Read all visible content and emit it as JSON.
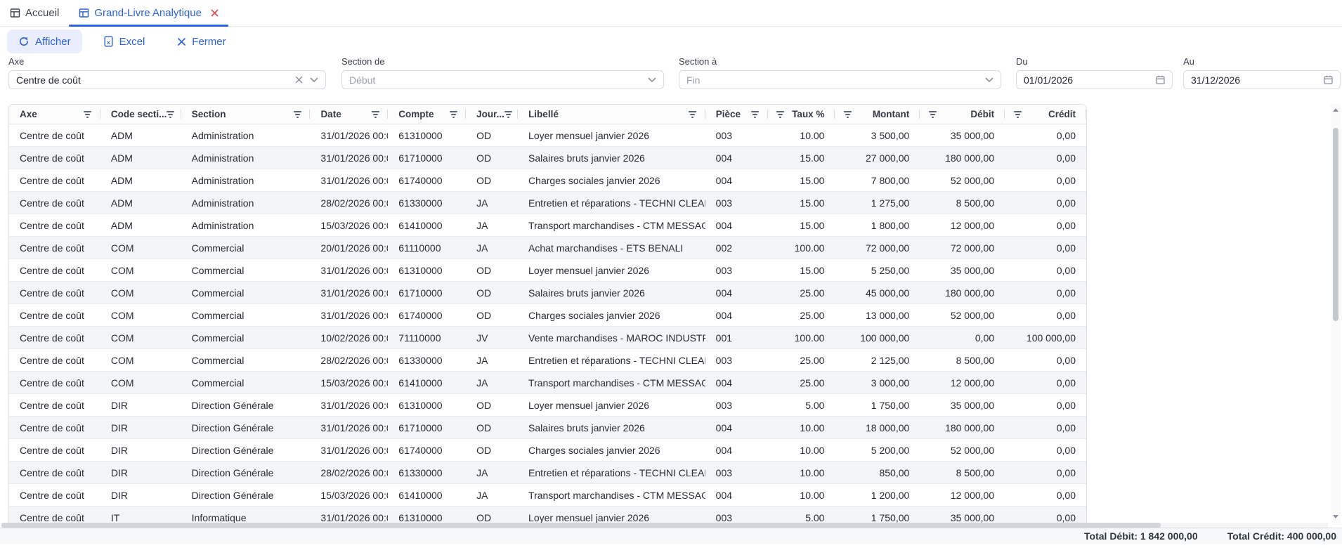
{
  "tabs": [
    {
      "label": "Accueil",
      "active": false
    },
    {
      "label": "Grand-Livre Analytique",
      "active": true,
      "closable": true
    }
  ],
  "toolbar": {
    "afficher_label": "Afficher",
    "excel_label": "Excel",
    "fermer_label": "Fermer"
  },
  "filters": {
    "axe": {
      "label": "Axe",
      "value": "Centre de coût",
      "clearable": true
    },
    "section_de": {
      "label": "Section de",
      "value": "Début"
    },
    "section_a": {
      "label": "Section à",
      "value": "Fin"
    },
    "du": {
      "label": "Du",
      "value": "01/01/2026"
    },
    "au": {
      "label": "Au",
      "value": "31/12/2026"
    }
  },
  "table": {
    "columns": [
      "Axe",
      "Code secti...",
      "Section",
      "Date",
      "Compte",
      "Jour...",
      "Libellé",
      "Pièce",
      "Taux %",
      "Montant",
      "Débit",
      "Crédit"
    ],
    "rows": [
      [
        "Centre de coût",
        "ADM",
        "Administration",
        "31/01/2026 00:0",
        "61310000",
        "OD",
        "Loyer mensuel janvier 2026",
        "003",
        "10.00",
        "3 500,00",
        "35 000,00",
        "0,00"
      ],
      [
        "Centre de coût",
        "ADM",
        "Administration",
        "31/01/2026 00:0",
        "61710000",
        "OD",
        "Salaires bruts janvier 2026",
        "004",
        "15.00",
        "27 000,00",
        "180 000,00",
        "0,00"
      ],
      [
        "Centre de coût",
        "ADM",
        "Administration",
        "31/01/2026 00:0",
        "61740000",
        "OD",
        "Charges sociales janvier 2026",
        "004",
        "15.00",
        "7 800,00",
        "52 000,00",
        "0,00"
      ],
      [
        "Centre de coût",
        "ADM",
        "Administration",
        "28/02/2026 00:0",
        "61330000",
        "JA",
        "Entretien et réparations - TECHNI CLEAN",
        "003",
        "15.00",
        "1 275,00",
        "8 500,00",
        "0,00"
      ],
      [
        "Centre de coût",
        "ADM",
        "Administration",
        "15/03/2026 00:0",
        "61410000",
        "JA",
        "Transport marchandises - CTM MESSAGE",
        "004",
        "15.00",
        "1 800,00",
        "12 000,00",
        "0,00"
      ],
      [
        "Centre de coût",
        "COM",
        "Commercial",
        "20/01/2026 00:0",
        "61110000",
        "JA",
        "Achat marchandises - ETS BENALI",
        "002",
        "100.00",
        "72 000,00",
        "72 000,00",
        "0,00"
      ],
      [
        "Centre de coût",
        "COM",
        "Commercial",
        "31/01/2026 00:0",
        "61310000",
        "OD",
        "Loyer mensuel janvier 2026",
        "003",
        "15.00",
        "5 250,00",
        "35 000,00",
        "0,00"
      ],
      [
        "Centre de coût",
        "COM",
        "Commercial",
        "31/01/2026 00:0",
        "61710000",
        "OD",
        "Salaires bruts janvier 2026",
        "004",
        "25.00",
        "45 000,00",
        "180 000,00",
        "0,00"
      ],
      [
        "Centre de coût",
        "COM",
        "Commercial",
        "31/01/2026 00:0",
        "61740000",
        "OD",
        "Charges sociales janvier 2026",
        "004",
        "25.00",
        "13 000,00",
        "52 000,00",
        "0,00"
      ],
      [
        "Centre de coût",
        "COM",
        "Commercial",
        "10/02/2026 00:0",
        "71110000",
        "JV",
        "Vente marchandises - MAROC INDUSTRI",
        "001",
        "100.00",
        "100 000,00",
        "0,00",
        "100 000,00"
      ],
      [
        "Centre de coût",
        "COM",
        "Commercial",
        "28/02/2026 00:0",
        "61330000",
        "JA",
        "Entretien et réparations - TECHNI CLEAN",
        "003",
        "25.00",
        "2 125,00",
        "8 500,00",
        "0,00"
      ],
      [
        "Centre de coût",
        "COM",
        "Commercial",
        "15/03/2026 00:0",
        "61410000",
        "JA",
        "Transport marchandises - CTM MESSAGE",
        "004",
        "25.00",
        "3 000,00",
        "12 000,00",
        "0,00"
      ],
      [
        "Centre de coût",
        "DIR",
        "Direction Générale",
        "31/01/2026 00:0",
        "61310000",
        "OD",
        "Loyer mensuel janvier 2026",
        "003",
        "5.00",
        "1 750,00",
        "35 000,00",
        "0,00"
      ],
      [
        "Centre de coût",
        "DIR",
        "Direction Générale",
        "31/01/2026 00:0",
        "61710000",
        "OD",
        "Salaires bruts janvier 2026",
        "004",
        "10.00",
        "18 000,00",
        "180 000,00",
        "0,00"
      ],
      [
        "Centre de coût",
        "DIR",
        "Direction Générale",
        "31/01/2026 00:0",
        "61740000",
        "OD",
        "Charges sociales janvier 2026",
        "004",
        "10.00",
        "5 200,00",
        "52 000,00",
        "0,00"
      ],
      [
        "Centre de coût",
        "DIR",
        "Direction Générale",
        "28/02/2026 00:0",
        "61330000",
        "JA",
        "Entretien et réparations - TECHNI CLEAN",
        "003",
        "10.00",
        "850,00",
        "8 500,00",
        "0,00"
      ],
      [
        "Centre de coût",
        "DIR",
        "Direction Générale",
        "15/03/2026 00:0",
        "61410000",
        "JA",
        "Transport marchandises - CTM MESSAGE",
        "004",
        "10.00",
        "1 200,00",
        "12 000,00",
        "0,00"
      ],
      [
        "Centre de coût",
        "IT",
        "Informatique",
        "31/01/2026 00:0",
        "61310000",
        "OD",
        "Loyer mensuel janvier 2026",
        "003",
        "5.00",
        "1 750,00",
        "35 000,00",
        "0,00"
      ]
    ]
  },
  "status_bar": {
    "total_debit": "Total Débit: 1 842 000,00",
    "total_credit": "Total Crédit: 400 000,00"
  },
  "icons": {
    "tab": "grid-icon",
    "close": "close-icon",
    "refresh": "refresh-icon",
    "excel": "excel-file-icon",
    "clear": "clear-icon",
    "chevron": "chevron-down-icon",
    "calendar": "calendar-icon",
    "header_filter": "filter-funnel-icon"
  },
  "colors": {
    "accent_blue": "#2b61de",
    "close_red": "#e0474e",
    "alt_row": "#f3f5f9",
    "button_bg": "#e9edfc",
    "placeholder_gray": "#9aa1ad"
  }
}
